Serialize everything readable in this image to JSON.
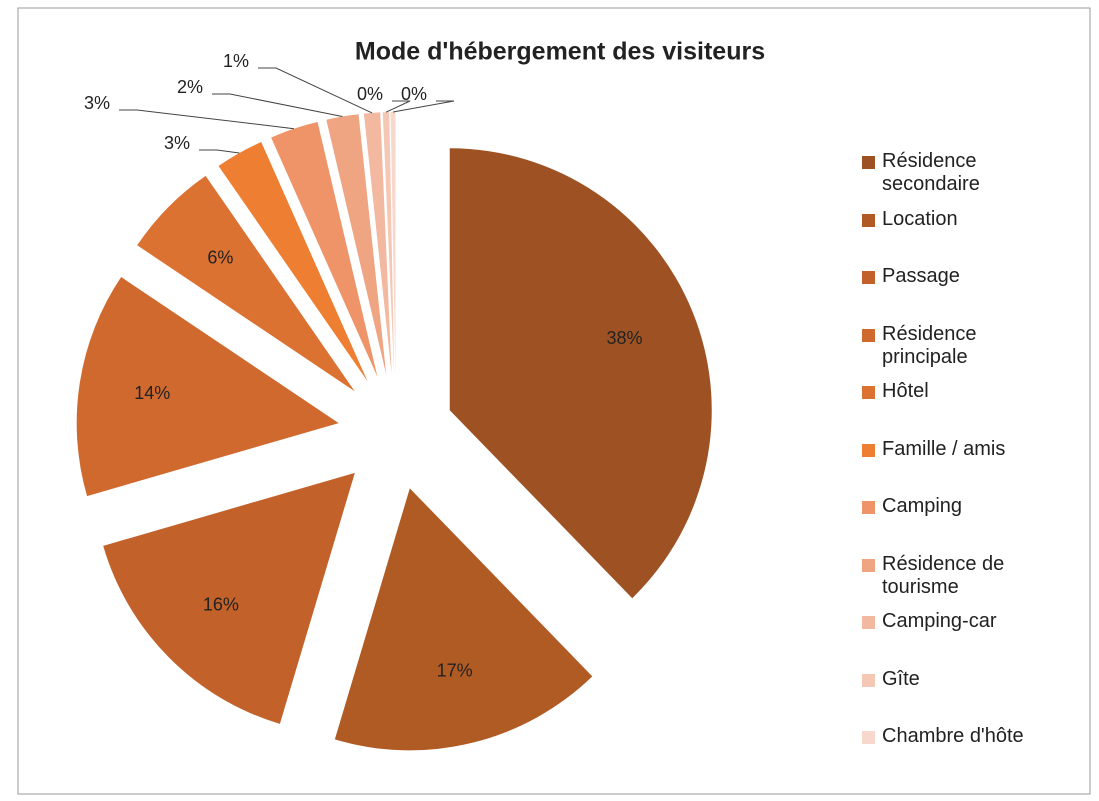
{
  "chart_data": {
    "type": "pie",
    "title": "Mode d'hébergement des visiteurs",
    "categories": [
      "Résidence secondaire",
      "Location",
      "Passage",
      "Résidence principale",
      "Hôtel",
      "Famille / amis",
      "Camping",
      "Résidence de tourisme",
      "Camping-car",
      "Gîte",
      "Chambre d'hôte"
    ],
    "values": [
      38,
      17,
      16,
      14,
      6,
      3,
      3,
      2,
      1,
      0.4,
      0.3
    ],
    "value_labels": [
      "38%",
      "17%",
      "16%",
      "14%",
      "6%",
      "3%",
      "3%",
      "2%",
      "1%",
      "0%",
      "0%"
    ],
    "colors": [
      "#9e5224",
      "#b05a24",
      "#c2622a",
      "#d0692e",
      "#dc7232",
      "#ee7f32",
      "#ee9468",
      "#efa482",
      "#f2b8a0",
      "#f5c8b5",
      "#f8d8cc"
    ],
    "legend": "right"
  }
}
